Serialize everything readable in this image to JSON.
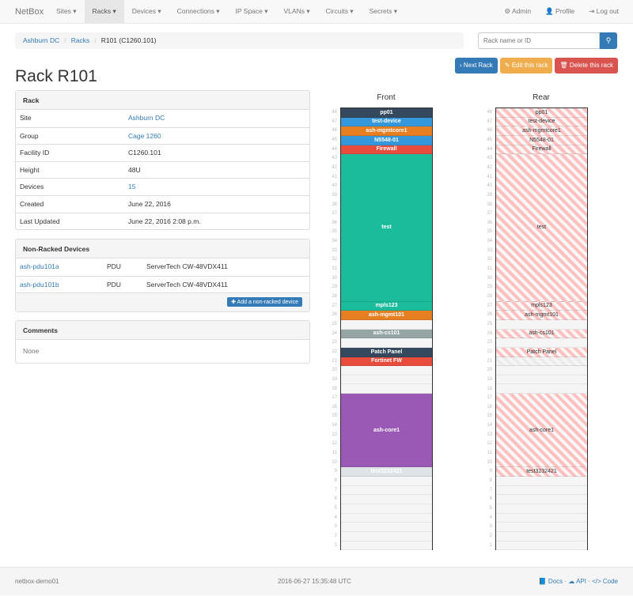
{
  "nav": {
    "brand": "NetBox",
    "items": [
      "Sites ▾",
      "Racks ▾",
      "Devices ▾",
      "Connections ▾",
      "IP Space ▾",
      "VLANs ▾",
      "Circuits ▾",
      "Secrets ▾"
    ],
    "active": 1,
    "right": [
      "⚙ Admin",
      "👤 Profile",
      "⇥ Log out"
    ]
  },
  "breadcrumb": [
    "Ashburn DC",
    "Racks",
    "R101 (C1260.101)"
  ],
  "search": {
    "placeholder": "Rack name or ID",
    "icon": "search-icon"
  },
  "buttons": {
    "next": "› Next Rack",
    "edit": "✎ Edit this rack",
    "delete": "🗑 Delete this rack"
  },
  "title": "Rack R101",
  "rack_panel": {
    "heading": "Rack",
    "rows": [
      {
        "k": "Site",
        "v": "Ashburn DC",
        "link": true
      },
      {
        "k": "Group",
        "v": "Cage 1260",
        "link": true
      },
      {
        "k": "Facility ID",
        "v": "C1260.101"
      },
      {
        "k": "Height",
        "v": "48U"
      },
      {
        "k": "Devices",
        "v": "15",
        "link": true
      },
      {
        "k": "Created",
        "v": "June 22, 2016"
      },
      {
        "k": "Last Updated",
        "v": "June 22, 2016 2:08 p.m."
      }
    ]
  },
  "nonracked": {
    "heading": "Non-Racked Devices",
    "rows": [
      {
        "name": "ash-pdu101a",
        "role": "PDU",
        "type": "ServerTech CW-48VDX411"
      },
      {
        "name": "ash-pdu101b",
        "role": "PDU",
        "type": "ServerTech CW-48VDX411"
      }
    ],
    "add": "✚ Add a non-racked device"
  },
  "comments": {
    "heading": "Comments",
    "body": "None"
  },
  "rack": {
    "height": 48,
    "front_label": "Front",
    "rear_label": "Rear",
    "devices": [
      {
        "name": "pp01",
        "u": 48,
        "h": 1,
        "color": "#34495e"
      },
      {
        "name": "test-device",
        "u": 47,
        "h": 1,
        "color": "#3498db"
      },
      {
        "name": "ash-mgmtcore1",
        "u": 46,
        "h": 1,
        "color": "#e67e22"
      },
      {
        "name": "N5548-01",
        "u": 45,
        "h": 1,
        "color": "#3498db"
      },
      {
        "name": "Firewall",
        "u": 44,
        "h": 1,
        "color": "#e74c3c"
      },
      {
        "name": "test",
        "u": 28,
        "h": 16,
        "color": "#1abc9c"
      },
      {
        "name": "mpls123",
        "u": 27,
        "h": 1,
        "color": "#1abc9c"
      },
      {
        "name": "ash-mgmt101",
        "u": 26,
        "h": 1,
        "color": "#e67e22"
      },
      {
        "name": "ash-cs101",
        "u": 24,
        "h": 1,
        "color": "#95a5a6"
      },
      {
        "name": "Patch Panel",
        "u": 22,
        "h": 1,
        "color": "#34495e"
      },
      {
        "name": "Fortinet FW",
        "u": 21,
        "h": 1,
        "color": "#e74c3c",
        "half_depth": true
      },
      {
        "name": "ash-core1",
        "u": 10,
        "h": 8,
        "color": "#9b59b6"
      },
      {
        "name": "test3232421",
        "u": 9,
        "h": 1,
        "color": "#dde3e6"
      }
    ]
  },
  "footer": {
    "host": "netbox-demo01",
    "time": "2016-06-27 15:35:48 UTC",
    "docs": "📘 Docs",
    "api": "☁ API",
    "code": "</> Code"
  }
}
